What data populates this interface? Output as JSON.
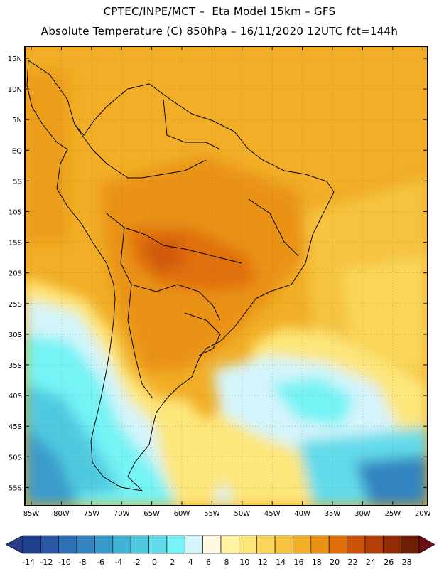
{
  "header": {
    "line1": "CPTEC/INPE/MCT –  Eta Model 15km – GFS",
    "line2": "Absolute Temperature (C) 850hPa – 16/11/2020 12UTC fct=144h"
  },
  "map": {
    "lat_labels": [
      "15N",
      "10N",
      "5N",
      "EQ",
      "5S",
      "10S",
      "15S",
      "20S",
      "25S",
      "30S",
      "35S",
      "40S",
      "45S",
      "50S",
      "55S"
    ],
    "lon_labels": [
      "85W",
      "80W",
      "75W",
      "70W",
      "65W",
      "60W",
      "55W",
      "50W",
      "45W",
      "40W",
      "35W",
      "30W",
      "25W",
      "20W"
    ],
    "region": "South America"
  },
  "legend": {
    "labels": [
      "-14",
      "-12",
      "-10",
      "-8",
      "-6",
      "-4",
      "-2",
      "0",
      "2",
      "4",
      "6",
      "8",
      "10",
      "12",
      "14",
      "16",
      "18",
      "20",
      "22",
      "24",
      "26",
      "28"
    ],
    "colors": [
      "#1f3f8f",
      "#2a58a6",
      "#2f6fb5",
      "#3384c0",
      "#3a9bcb",
      "#42b3d6",
      "#4fc9e0",
      "#62dbeb",
      "#75f3f5",
      "#d4f4fb",
      "#fff8e3",
      "#fff3a3",
      "#fde67a",
      "#f9d659",
      "#f5c33f",
      "#f1ae26",
      "#e99214",
      "#e06f0a",
      "#cc5208",
      "#b23f06",
      "#902c05",
      "#6e1e04"
    ],
    "left_arrow_color": "#2a3d8c",
    "right_arrow_color": "#6e0c18"
  }
}
